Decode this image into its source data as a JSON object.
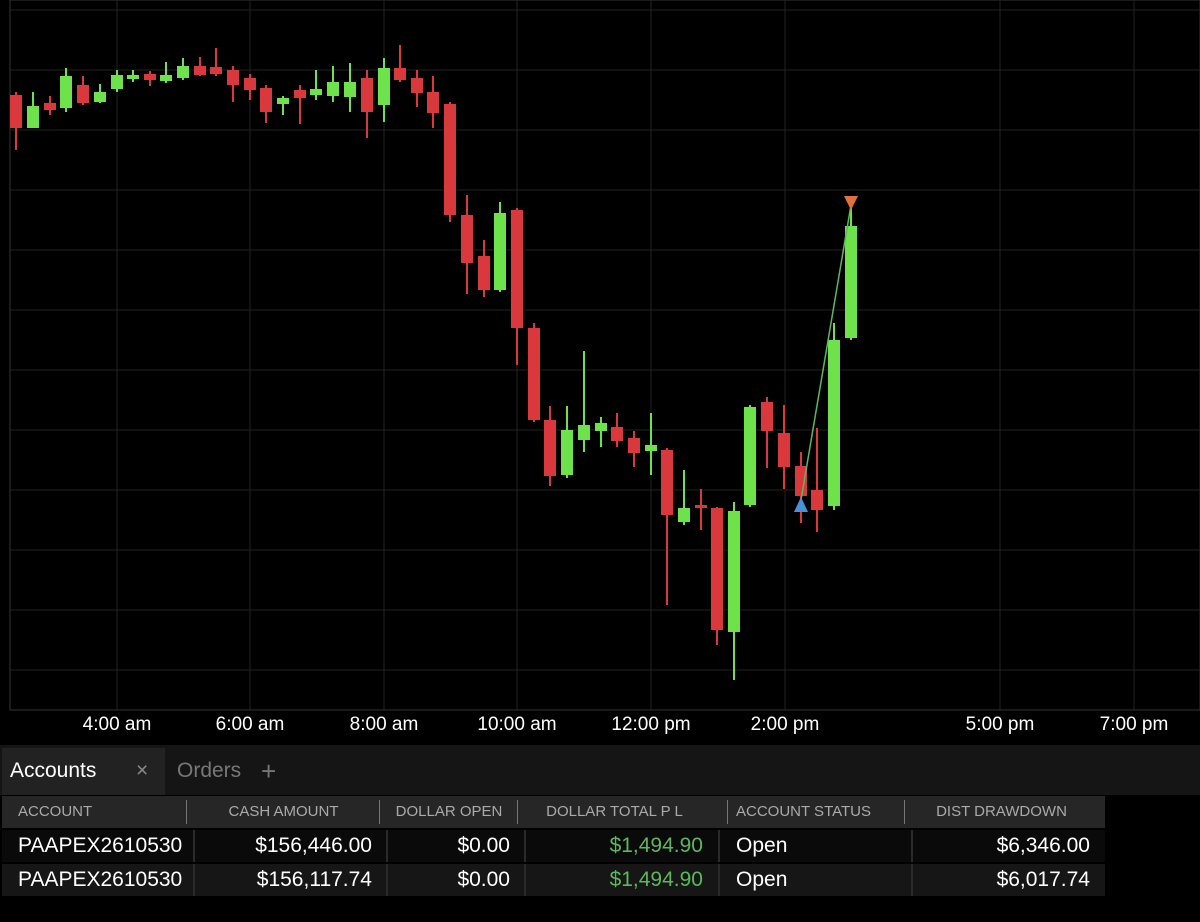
{
  "chart": {
    "x_axis_labels": [
      "4:00 am",
      "6:00 am",
      "8:00 am",
      "10:00 am",
      "12:00 pm",
      "2:00 pm",
      "5:00 pm",
      "7:00 pm"
    ]
  },
  "tabs": [
    {
      "label": "Accounts",
      "close": "×"
    },
    {
      "label": "Orders"
    }
  ],
  "add_tab": "+",
  "table": {
    "headers": [
      "ACCOUNT",
      "CASH AMOUNT",
      "DOLLAR OPEN",
      "DOLLAR TOTAL P L",
      "ACCOUNT STATUS",
      "DIST DRAWDOWN"
    ],
    "rows": [
      [
        "PAAPEX2610530",
        "$156,446.00",
        "$0.00",
        "$1,494.90",
        "Open",
        "$6,346.00"
      ],
      [
        "PAAPEX2610530",
        "$156,117.74",
        "$0.00",
        "$1,494.90",
        "Open",
        "$6,017.74"
      ]
    ]
  }
}
